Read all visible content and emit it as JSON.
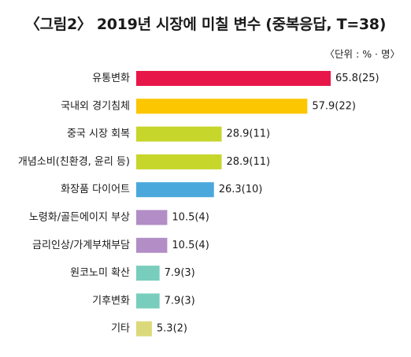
{
  "chart_data": {
    "type": "bar",
    "orientation": "horizontal",
    "title": "〈그림2〉 2019년 시장에 미칠 변수 (중복응답, T=38)",
    "unit_note": "〈단위 : % · 명〉",
    "xlim": [
      0,
      65.8
    ],
    "categories": [
      "유통변화",
      "국내외 경기침체",
      "중국 시장 회복",
      "개념소비(친환경, 윤리 등)",
      "화장품 다이어트",
      "노령화/골든에이지 부상",
      "금리인상/가계부채부담",
      "원코노미 확산",
      "기후변화",
      "기타"
    ],
    "values": [
      65.8,
      57.9,
      28.9,
      28.9,
      26.3,
      10.5,
      10.5,
      7.9,
      7.9,
      5.3
    ],
    "counts": [
      25,
      22,
      11,
      11,
      10,
      4,
      4,
      3,
      3,
      2
    ],
    "data_labels": [
      "65.8(25)",
      "57.9(22)",
      "28.9(11)",
      "28.9(11)",
      "26.3(10)",
      "10.5(4)",
      "10.5(4)",
      "7.9(3)",
      "7.9(3)",
      "5.3(2)"
    ],
    "colors": [
      "#e8174a",
      "#fcc600",
      "#c6d62b",
      "#c6d62b",
      "#4aa8dd",
      "#b38dc6",
      "#b38dc6",
      "#79cdbc",
      "#79cdbc",
      "#dcd97a"
    ]
  }
}
